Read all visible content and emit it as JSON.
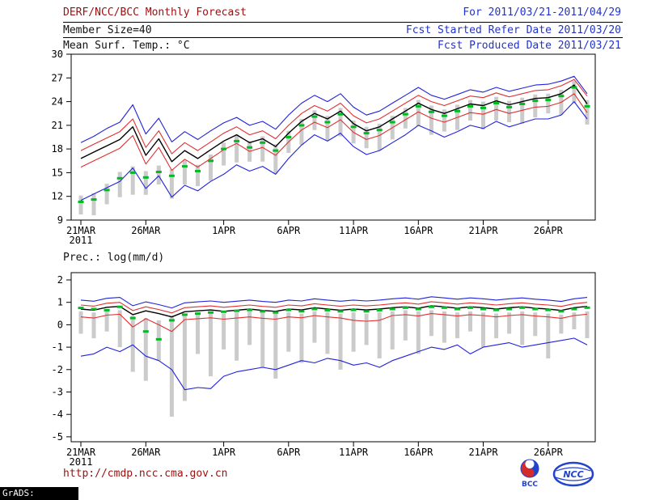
{
  "header": {
    "title": "DERF/NCC/BCC Monthly Forecast",
    "date_range": "For 2011/03/21-2011/04/29",
    "member_size": "Member Size=40",
    "refer_date": "Fcst Started Refer Date 2011/03/20",
    "produced_date": "Fcst Produced Date 2011/03/21"
  },
  "footer": {
    "url": "http://cmdp.ncc.cma.gov.cn",
    "credit": "GrADS: COLA/IGES",
    "logo1_label": "BCC",
    "logo2_label": "NCC"
  },
  "colors": {
    "title": "#9b1010",
    "header_right": "#2233cc",
    "envelope": "#2222dd",
    "quartile": "#e03030",
    "mean": "#000000",
    "obs": "#00bb22",
    "bars": "#cbcbcb"
  },
  "chart_data": [
    {
      "type": "line",
      "name": "temp",
      "title": "Mean Surf. Temp.: °C",
      "xlabel": "",
      "ylabel": "",
      "ylim": [
        9,
        30
      ],
      "yticks": [
        9,
        12,
        15,
        18,
        21,
        24,
        27,
        30
      ],
      "grid": false,
      "legend": false,
      "n_points": 40,
      "xticks": [
        {
          "pos": 0,
          "label": "21MAR",
          "sub": "2011"
        },
        {
          "pos": 5,
          "label": "26MAR"
        },
        {
          "pos": 11,
          "label": "1APR"
        },
        {
          "pos": 16,
          "label": "6APR"
        },
        {
          "pos": 21,
          "label": "11APR"
        },
        {
          "pos": 26,
          "label": "16APR"
        },
        {
          "pos": 31,
          "label": "21APR"
        },
        {
          "pos": 36,
          "label": "26APR"
        }
      ],
      "series": [
        {
          "name": "ens-max",
          "color": "#2222dd",
          "width": 1.1,
          "values": [
            18.8,
            19.6,
            20.6,
            21.4,
            23.6,
            19.9,
            21.9,
            18.9,
            20.2,
            19.2,
            20.3,
            21.3,
            22.0,
            21.0,
            21.5,
            20.5,
            22.3,
            23.8,
            24.8,
            24.0,
            25.0,
            23.3,
            22.3,
            22.8,
            23.8,
            24.8,
            25.8,
            24.8,
            24.3,
            24.9,
            25.5,
            25.2,
            25.8,
            25.3,
            25.7,
            26.1,
            26.2,
            26.6,
            27.2,
            25.0
          ]
        },
        {
          "name": "upper-quartile",
          "color": "#e03030",
          "width": 1.1,
          "values": [
            17.8,
            18.6,
            19.4,
            20.2,
            21.8,
            18.2,
            20.3,
            17.4,
            18.8,
            17.8,
            18.9,
            20.0,
            20.8,
            19.8,
            20.3,
            19.3,
            21.0,
            22.5,
            23.5,
            22.8,
            23.8,
            22.2,
            21.3,
            21.8,
            22.8,
            23.8,
            24.8,
            24.0,
            23.5,
            24.1,
            24.7,
            24.5,
            25.1,
            24.6,
            25.0,
            25.4,
            25.5,
            26.0,
            26.8,
            24.7
          ]
        },
        {
          "name": "ens-mean",
          "color": "#000000",
          "width": 1.4,
          "values": [
            16.8,
            17.6,
            18.4,
            19.2,
            20.8,
            17.2,
            19.3,
            16.4,
            17.8,
            16.8,
            17.9,
            19.0,
            19.8,
            18.8,
            19.3,
            18.3,
            20.0,
            21.5,
            22.5,
            21.8,
            22.8,
            21.2,
            20.3,
            20.8,
            21.8,
            22.8,
            23.8,
            23.0,
            22.5,
            23.1,
            23.7,
            23.5,
            24.1,
            23.6,
            24.0,
            24.4,
            24.5,
            25.0,
            26.1,
            23.7
          ]
        },
        {
          "name": "lower-quartile",
          "color": "#e03030",
          "width": 1.1,
          "values": [
            15.7,
            16.5,
            17.3,
            18.1,
            19.7,
            16.1,
            18.2,
            15.3,
            16.7,
            15.7,
            16.8,
            17.9,
            18.7,
            17.7,
            18.2,
            17.2,
            18.9,
            20.4,
            21.4,
            20.7,
            21.7,
            20.1,
            19.2,
            19.7,
            20.7,
            21.7,
            22.7,
            21.9,
            21.4,
            22.0,
            22.6,
            22.4,
            23.0,
            22.5,
            22.9,
            23.3,
            23.4,
            23.9,
            25.0,
            22.6
          ]
        },
        {
          "name": "ens-min",
          "color": "#2222dd",
          "width": 1.1,
          "values": [
            11.5,
            12.3,
            13.1,
            13.9,
            15.6,
            13.0,
            14.6,
            11.9,
            13.4,
            12.7,
            13.9,
            14.8,
            16.0,
            15.2,
            15.8,
            14.8,
            16.8,
            18.5,
            19.8,
            19.0,
            20.0,
            18.3,
            17.3,
            17.8,
            18.8,
            19.8,
            21.0,
            20.3,
            19.5,
            20.2,
            21.0,
            20.6,
            21.5,
            20.8,
            21.3,
            21.8,
            21.8,
            22.3,
            24.0,
            21.8
          ]
        }
      ],
      "markers": {
        "name": "obs-dashes",
        "color": "#00bb22",
        "values": [
          11.3,
          11.6,
          12.8,
          14.3,
          15.0,
          14.4,
          15.1,
          14.6,
          15.8,
          15.2,
          16.5,
          18.0,
          19.0,
          18.2,
          18.8,
          17.8,
          19.5,
          21.0,
          22.1,
          21.4,
          22.4,
          20.8,
          20.0,
          20.4,
          21.4,
          22.4,
          23.4,
          22.7,
          22.2,
          22.8,
          23.4,
          23.2,
          23.8,
          23.3,
          23.7,
          24.1,
          24.2,
          24.7,
          25.8,
          23.4
        ]
      },
      "bars": {
        "name": "spread-bars",
        "color": "#cbcbcb",
        "top": [
          12.1,
          12.4,
          13.6,
          15.1,
          15.8,
          15.2,
          15.9,
          15.4,
          16.6,
          16.0,
          17.3,
          18.8,
          19.8,
          19.0,
          19.6,
          18.6,
          20.3,
          21.8,
          22.9,
          22.2,
          23.2,
          21.6,
          20.8,
          21.2,
          22.2,
          23.2,
          24.2,
          23.5,
          23.0,
          23.6,
          24.2,
          24.0,
          24.6,
          24.1,
          24.5,
          24.9,
          25.0,
          25.5,
          26.6,
          24.2
        ],
        "bottom": [
          9.7,
          9.6,
          11.0,
          11.9,
          12.2,
          12.2,
          13.5,
          11.7,
          13.5,
          13.3,
          14.0,
          15.9,
          16.3,
          16.4,
          16.4,
          14.9,
          17.5,
          18.5,
          20.4,
          19.1,
          19.6,
          18.7,
          18.1,
          17.8,
          19.2,
          20.6,
          20.9,
          19.8,
          20.2,
          20.4,
          21.6,
          20.5,
          21.6,
          21.4,
          21.2,
          22.0,
          22.5,
          22.3,
          23.8,
          21.1
        ]
      }
    },
    {
      "type": "line",
      "name": "prec",
      "title": "Prec.: log(mm/d)",
      "xlabel": "",
      "ylabel": "",
      "ylim": [
        -5,
        2
      ],
      "yticks": [
        -5,
        -4,
        -3,
        -2,
        -1,
        0,
        1,
        2
      ],
      "grid": false,
      "legend": false,
      "n_points": 40,
      "xticks": [
        {
          "pos": 0,
          "label": "21MAR",
          "sub": "2011"
        },
        {
          "pos": 5,
          "label": "26MAR"
        },
        {
          "pos": 11,
          "label": "1APR"
        },
        {
          "pos": 16,
          "label": "6APR"
        },
        {
          "pos": 21,
          "label": "11APR"
        },
        {
          "pos": 26,
          "label": "16APR"
        },
        {
          "pos": 31,
          "label": "21APR"
        },
        {
          "pos": 36,
          "label": "26APR"
        }
      ],
      "series": [
        {
          "name": "ens-max",
          "color": "#2222dd",
          "width": 1.1,
          "values": [
            1.1,
            1.05,
            1.18,
            1.22,
            0.85,
            1.02,
            0.9,
            0.75,
            0.98,
            1.02,
            1.06,
            1.0,
            1.05,
            1.1,
            1.04,
            1.0,
            1.1,
            1.06,
            1.16,
            1.1,
            1.05,
            1.1,
            1.06,
            1.1,
            1.16,
            1.2,
            1.14,
            1.25,
            1.2,
            1.14,
            1.2,
            1.16,
            1.1,
            1.16,
            1.2,
            1.14,
            1.1,
            1.04,
            1.16,
            1.22
          ]
        },
        {
          "name": "upper-quartile",
          "color": "#e03030",
          "width": 1.1,
          "values": [
            0.88,
            0.83,
            0.96,
            1.0,
            0.63,
            0.8,
            0.68,
            0.53,
            0.76,
            0.8,
            0.84,
            0.78,
            0.83,
            0.88,
            0.82,
            0.78,
            0.88,
            0.84,
            0.94,
            0.88,
            0.83,
            0.88,
            0.84,
            0.88,
            0.94,
            0.98,
            0.92,
            1.03,
            0.98,
            0.92,
            0.98,
            0.94,
            0.88,
            0.94,
            0.98,
            0.92,
            0.88,
            0.82,
            0.94,
            1.0
          ]
        },
        {
          "name": "ens-mean",
          "color": "#000000",
          "width": 1.4,
          "values": [
            0.7,
            0.65,
            0.78,
            0.82,
            0.45,
            0.62,
            0.5,
            0.35,
            0.58,
            0.62,
            0.66,
            0.6,
            0.65,
            0.7,
            0.64,
            0.6,
            0.7,
            0.66,
            0.76,
            0.7,
            0.65,
            0.7,
            0.66,
            0.7,
            0.76,
            0.8,
            0.74,
            0.85,
            0.8,
            0.74,
            0.8,
            0.76,
            0.7,
            0.76,
            0.8,
            0.74,
            0.7,
            0.64,
            0.76,
            0.82
          ]
        },
        {
          "name": "lower-quartile",
          "color": "#e03030",
          "width": 1.1,
          "values": [
            0.35,
            0.3,
            0.43,
            0.47,
            -0.1,
            0.27,
            0.0,
            -0.3,
            0.23,
            0.27,
            0.31,
            0.25,
            0.3,
            0.35,
            0.29,
            0.25,
            0.35,
            0.31,
            0.41,
            0.35,
            0.3,
            0.2,
            0.16,
            0.2,
            0.41,
            0.45,
            0.39,
            0.5,
            0.45,
            0.39,
            0.45,
            0.41,
            0.35,
            0.41,
            0.45,
            0.39,
            0.35,
            0.29,
            0.41,
            0.47
          ]
        },
        {
          "name": "ens-min",
          "color": "#2222dd",
          "width": 1.1,
          "values": [
            -1.4,
            -1.3,
            -1.0,
            -1.2,
            -0.9,
            -1.4,
            -1.6,
            -2.0,
            -2.9,
            -2.8,
            -2.85,
            -2.3,
            -2.1,
            -2.0,
            -1.9,
            -2.0,
            -1.8,
            -1.6,
            -1.7,
            -1.5,
            -1.6,
            -1.8,
            -1.7,
            -1.9,
            -1.6,
            -1.4,
            -1.2,
            -1.0,
            -1.1,
            -0.9,
            -1.3,
            -1.0,
            -0.9,
            -0.8,
            -1.0,
            -0.9,
            -0.8,
            -0.7,
            -0.6,
            -0.9
          ]
        }
      ],
      "markers": {
        "name": "obs-dashes",
        "color": "#00bb22",
        "values": [
          0.75,
          0.7,
          0.65,
          0.8,
          0.3,
          -0.3,
          -0.65,
          0.2,
          0.45,
          0.5,
          0.55,
          0.58,
          0.62,
          0.66,
          0.6,
          0.55,
          0.66,
          0.6,
          0.7,
          0.65,
          0.6,
          0.66,
          0.6,
          0.65,
          0.7,
          0.76,
          0.7,
          0.8,
          0.76,
          0.7,
          0.76,
          0.7,
          0.66,
          0.7,
          0.76,
          0.7,
          0.66,
          0.6,
          0.7,
          0.76
        ]
      },
      "bars": {
        "name": "spread-bars",
        "color": "#cbcbcb",
        "top": [
          0.6,
          0.55,
          0.6,
          0.65,
          0.4,
          0.3,
          0.2,
          0.4,
          0.5,
          0.5,
          0.55,
          0.5,
          0.55,
          0.6,
          0.55,
          0.5,
          0.55,
          0.5,
          0.6,
          0.55,
          0.5,
          0.55,
          0.5,
          0.55,
          0.6,
          0.65,
          0.6,
          0.65,
          0.6,
          0.55,
          0.6,
          0.55,
          0.5,
          0.55,
          0.6,
          0.55,
          0.5,
          0.45,
          0.55,
          0.6
        ],
        "bottom": [
          -0.4,
          -0.6,
          -0.3,
          -1.0,
          -2.1,
          -2.5,
          -1.6,
          -4.1,
          -3.4,
          -1.3,
          -2.3,
          -1.1,
          -1.6,
          -0.9,
          -1.9,
          -2.4,
          -1.2,
          -1.7,
          -0.8,
          -1.3,
          -2.0,
          -1.2,
          -0.9,
          -1.5,
          -1.1,
          -0.7,
          -1.3,
          -0.5,
          -0.8,
          -0.6,
          -0.3,
          -1.0,
          -0.6,
          -0.4,
          -0.9,
          -0.5,
          -1.5,
          -0.4,
          -0.2,
          -0.6
        ]
      }
    }
  ]
}
